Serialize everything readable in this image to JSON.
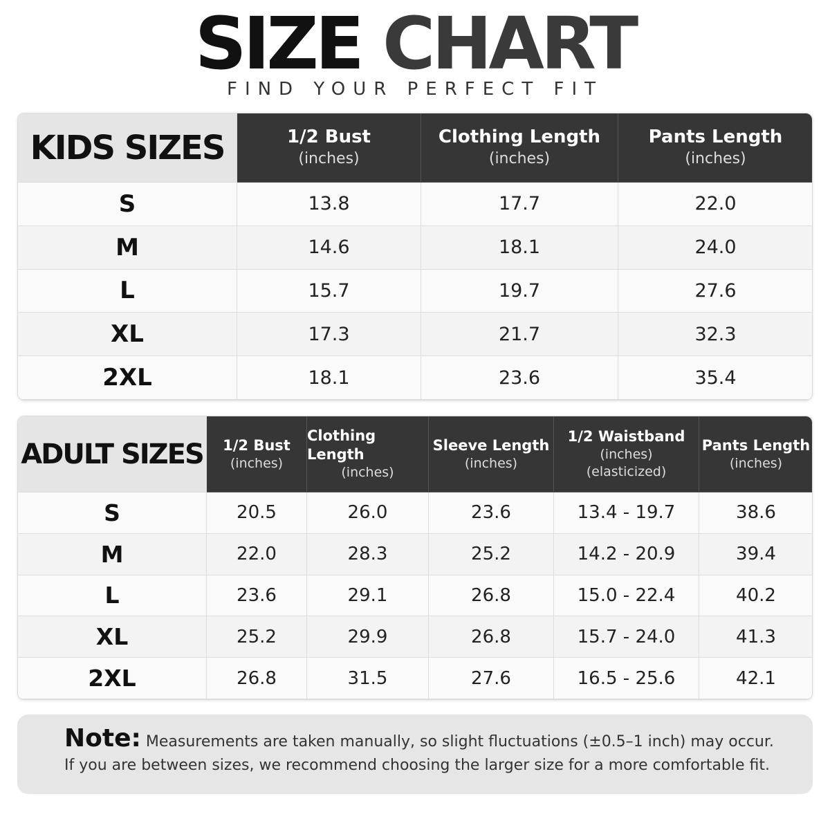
{
  "header": {
    "title_1": "SIZE",
    "title_2": "CHART",
    "subtitle": "FIND YOUR PERFECT FIT"
  },
  "kids": {
    "title": "KIDS SIZES",
    "columns": [
      {
        "name": "1/2 Bust",
        "unit": "(inches)"
      },
      {
        "name": "Clothing Length",
        "unit": "(inches)"
      },
      {
        "name": "Pants Length",
        "unit": "(inches)"
      }
    ],
    "rows": [
      [
        "S",
        "13.8",
        "17.7",
        "22.0"
      ],
      [
        "M",
        "14.6",
        "18.1",
        "24.0"
      ],
      [
        "L",
        "15.7",
        "19.7",
        "27.6"
      ],
      [
        "XL",
        "17.3",
        "21.7",
        "32.3"
      ],
      [
        "2XL",
        "18.1",
        "23.6",
        "35.4"
      ]
    ]
  },
  "adult": {
    "title": "ADULT SIZES",
    "columns": [
      {
        "name": "1/2 Bust",
        "unit": "(inches)"
      },
      {
        "name": "Clothing Length",
        "unit": "(inches)"
      },
      {
        "name": "Sleeve Length",
        "unit": "(inches)"
      },
      {
        "name": "1/2 Waistband",
        "unit": "(inches)",
        "extra": "(elasticized)"
      },
      {
        "name": "Pants Length",
        "unit": "(inches)"
      }
    ],
    "rows": [
      [
        "S",
        "20.5",
        "26.0",
        "23.6",
        "13.4 - 19.7",
        "38.6"
      ],
      [
        "M",
        "22.0",
        "28.3",
        "25.2",
        "14.2 - 20.9",
        "39.4"
      ],
      [
        "L",
        "23.6",
        "29.1",
        "26.8",
        "15.0 - 22.4",
        "40.2"
      ],
      [
        "XL",
        "25.2",
        "29.9",
        "26.8",
        "15.7 - 24.0",
        "41.3"
      ],
      [
        "2XL",
        "26.8",
        "31.5",
        "27.6",
        "16.5 - 25.6",
        "42.1"
      ]
    ]
  },
  "note": {
    "label": "Note:",
    "line_1": "Measurements are taken manually, so slight fluctuations (±0.5–1 inch) may occur.",
    "line_2": "If you are between sizes, we recommend choosing the larger size for a more comfortable fit."
  }
}
